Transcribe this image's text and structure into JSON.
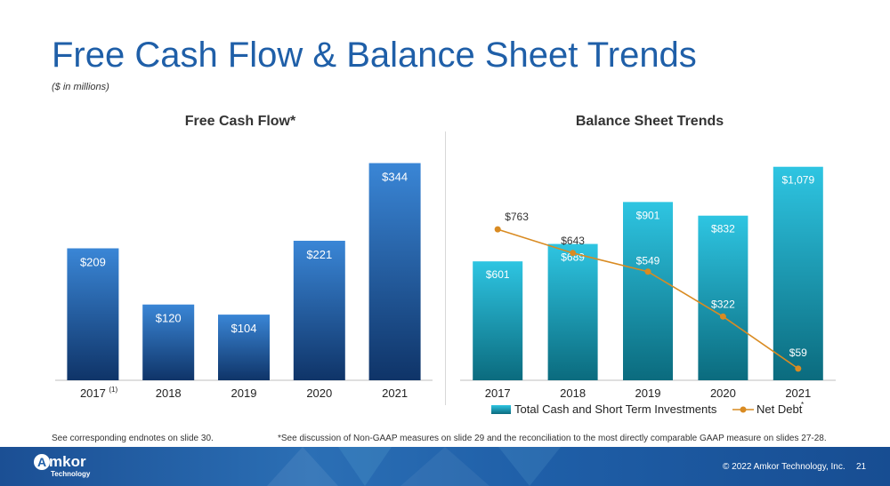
{
  "header": {
    "title": "Free Cash Flow & Balance Sheet Trends",
    "subtitle": "($ in millions)"
  },
  "chart_data": [
    {
      "type": "bar",
      "title": "Free Cash Flow*",
      "categories": [
        "2017",
        "2018",
        "2019",
        "2020",
        "2021"
      ],
      "category_notes": [
        "(1)",
        "",
        "",
        "",
        ""
      ],
      "values": [
        209,
        120,
        104,
        221,
        344
      ],
      "labels": [
        "$209",
        "$120",
        "$104",
        "$221",
        "$344"
      ],
      "ylim": [
        0,
        380
      ],
      "color_top": "#3a86d6",
      "color_bottom": "#0f3468"
    },
    {
      "type": "bar+line",
      "title": "Balance Sheet Trends",
      "categories": [
        "2017",
        "2018",
        "2019",
        "2020",
        "2021"
      ],
      "ylim": [
        0,
        1190
      ],
      "series": [
        {
          "name": "Total Cash and Short Term Investments",
          "type": "bar",
          "values": [
            601,
            689,
            901,
            832,
            1079
          ],
          "labels": [
            "$601",
            "$689",
            "$901",
            "$832",
            "$1,079"
          ],
          "color_top": "#2ec5e2",
          "color_bottom": "#0b6b7e"
        },
        {
          "name": "Net Debt",
          "name_note": "*",
          "type": "line",
          "values": [
            763,
            643,
            549,
            322,
            59
          ],
          "labels": [
            "$763",
            "$643",
            "$549",
            "$322",
            "$59"
          ],
          "color": "#d98b22"
        }
      ],
      "legend_position": "bottom"
    }
  ],
  "footnotes": {
    "left": "See corresponding endnotes on slide 30.",
    "right": "*See discussion of Non-GAAP measures on slide 29 and the reconciliation to the most directly comparable GAAP measure on slides 27-28."
  },
  "footer": {
    "logo_text": "mkor",
    "logo_mark": "A",
    "logo_sub": "Technology",
    "copyright": "© 2022 Amkor Technology, Inc.",
    "page_number": "21"
  }
}
